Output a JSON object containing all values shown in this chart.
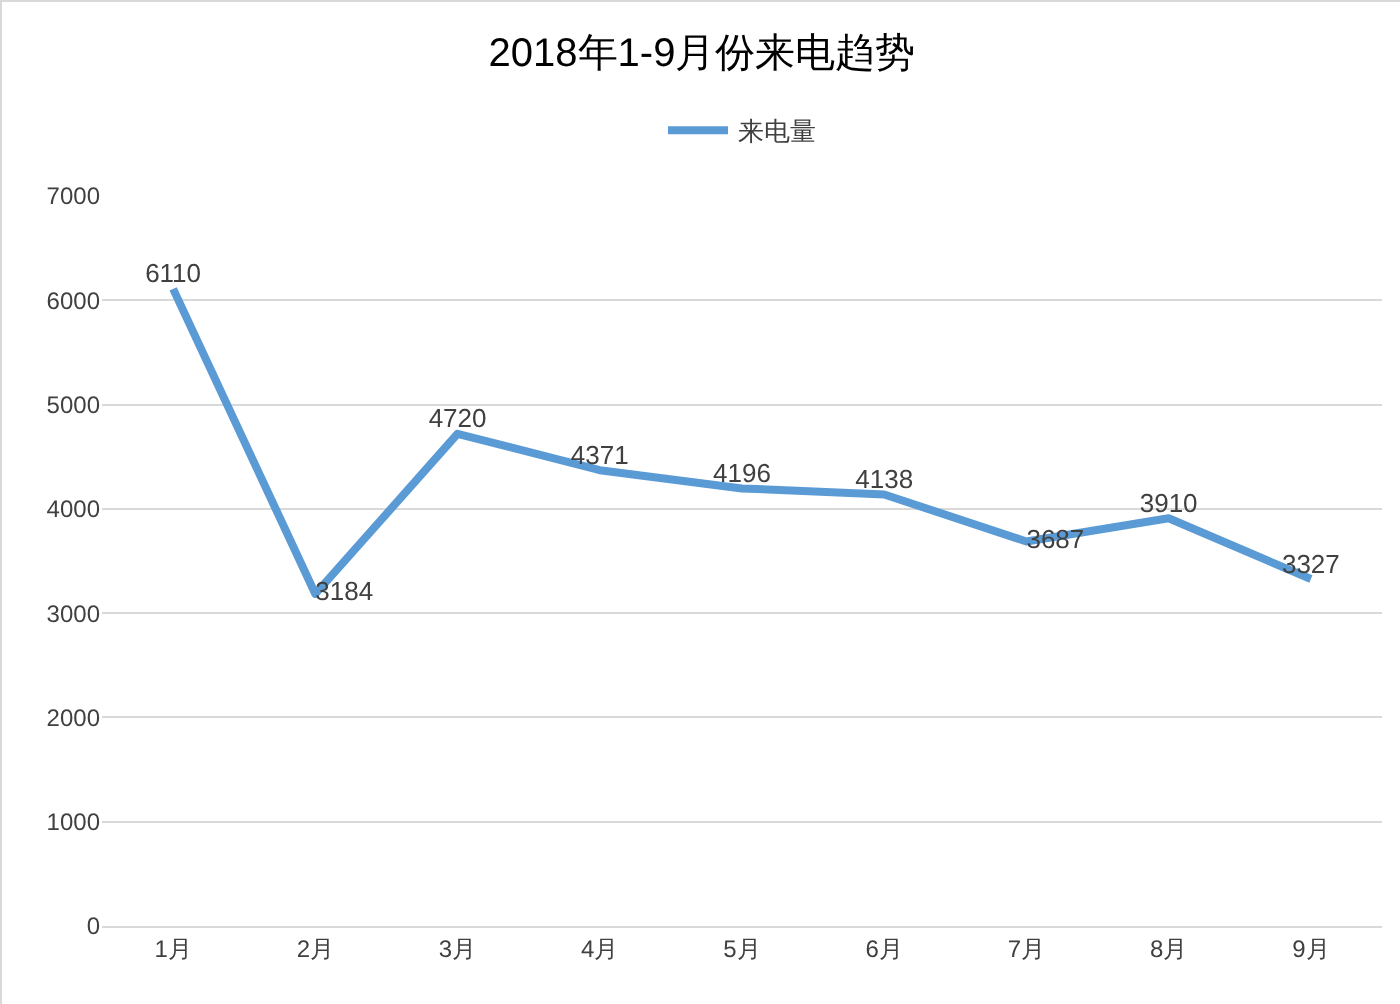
{
  "chart_data": {
    "type": "line",
    "title": "2018年1-9月份来电趋势",
    "categories": [
      "1月",
      "2月",
      "3月",
      "4月",
      "5月",
      "6月",
      "7月",
      "8月",
      "9月"
    ],
    "series": [
      {
        "name": "来电量",
        "color": "#5b9bd5",
        "values": [
          6110,
          3184,
          4720,
          4371,
          4196,
          4138,
          3687,
          3910,
          3327
        ]
      }
    ],
    "ylim": [
      0,
      7000
    ],
    "yticks": [
      0,
      1000,
      2000,
      3000,
      4000,
      5000,
      6000,
      7000
    ],
    "grid": "y",
    "legend": "top",
    "marker": "none",
    "line_style": "solid",
    "data_labels": true
  }
}
